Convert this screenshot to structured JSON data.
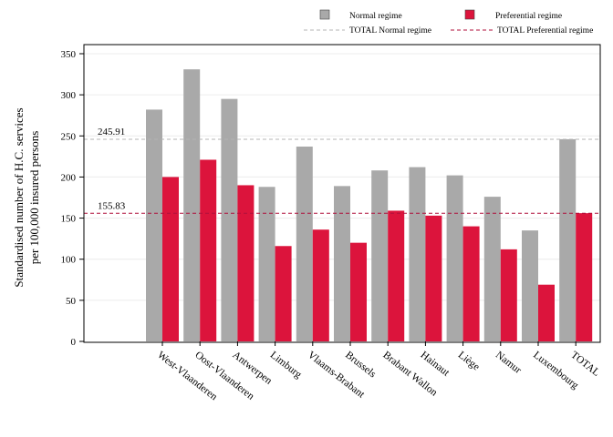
{
  "chart_data": {
    "type": "bar",
    "categories": [
      "West-Vlaanderen",
      "Oost-Vlaanderen",
      "Antwerpen",
      "Limburg",
      "Vlaams-Brabant",
      "Brussels",
      "Brabant Wallon",
      "Hainaut",
      "Liège",
      "Namur",
      "Luxembourg",
      "TOTAL"
    ],
    "series": [
      {
        "name": "Normal regime",
        "color": "#a9a9a9",
        "values": [
          282,
          331,
          295,
          188,
          237,
          189,
          208,
          212,
          202,
          176,
          135,
          246
        ]
      },
      {
        "name": "Preferential regime",
        "color": "#dc143c",
        "values": [
          200,
          221,
          190,
          116,
          136,
          120,
          159,
          153,
          140,
          112,
          69,
          156
        ]
      }
    ],
    "reference_lines": [
      {
        "name": "TOTAL Normal regime",
        "value": 245.91,
        "label": "245.91",
        "color": "#b4b4b4"
      },
      {
        "name": "TOTAL Preferential regime",
        "value": 155.83,
        "label": "155.83",
        "color": "#b0103c"
      }
    ],
    "ylabel_lines": [
      "Standardised number of H.C. services",
      "per 100,000 insured persons"
    ],
    "xlabel": "",
    "ylim": [
      0,
      350
    ],
    "yticks": [
      0,
      50,
      100,
      150,
      200,
      250,
      300,
      350
    ],
    "grid": true,
    "legend_position": "top-right"
  }
}
